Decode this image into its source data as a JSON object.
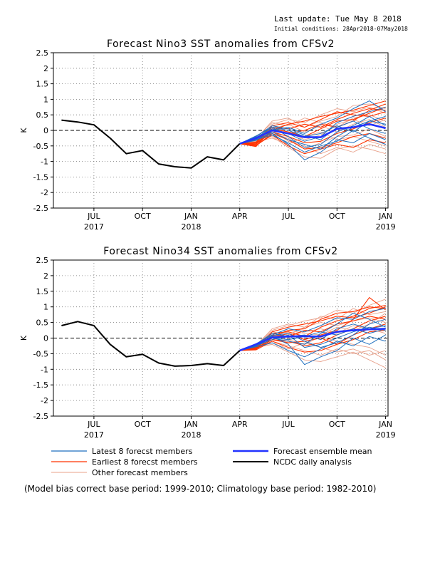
{
  "header": {
    "last_update": "Last update: Tue May 8 2018",
    "initial_conditions": "Initial conditions: 28Apr2018-07May2018"
  },
  "colors": {
    "latest": "#1f6fbf",
    "earliest": "#ff3300",
    "other": "#e8a08a",
    "mean": "#2233ff",
    "analysis": "#000000"
  },
  "legend": {
    "latest": "Latest 8 forecst members",
    "earliest": "Earliest 8 forecst members",
    "other": "Other forecast members",
    "mean": "Forecast ensemble mean",
    "analysis": "NCDC daily analysis"
  },
  "footnote": "(Model bias correct base period: 1999-2010; Climatology base period: 1982-2010)",
  "chart_data": [
    {
      "type": "line",
      "title": "Forecast Nino3 SST anomalies from CFSv2",
      "ylabel": "K",
      "ylim": [
        -2.5,
        2.5
      ],
      "yticks": [
        "2.5",
        "2",
        "1.5",
        "1",
        "0.5",
        "0",
        "-0.5",
        "-1",
        "-1.5",
        "-2",
        "-2.5"
      ],
      "xticks": [
        {
          "month": "JUL",
          "year": "2017"
        },
        {
          "month": "OCT",
          "year": ""
        },
        {
          "month": "JAN",
          "year": "2018"
        },
        {
          "month": "APR",
          "year": ""
        },
        {
          "month": "JUL",
          "year": ""
        },
        {
          "month": "OCT",
          "year": ""
        },
        {
          "month": "JAN",
          "year": "2019"
        }
      ],
      "x_months": [
        "2017-05",
        "2017-06",
        "2017-07",
        "2017-08",
        "2017-09",
        "2017-10",
        "2017-11",
        "2017-12",
        "2018-01",
        "2018-02",
        "2018-03",
        "2018-04",
        "2018-05",
        "2018-06",
        "2018-07",
        "2018-08",
        "2018-09",
        "2018-10",
        "2018-11",
        "2018-12",
        "2019-01"
      ],
      "grid": "dotted",
      "zero_line": "dashed",
      "analysis": [
        0.33,
        0.27,
        0.18,
        -0.25,
        -0.75,
        -0.65,
        -1.08,
        -1.17,
        -1.21,
        -0.85,
        -0.95,
        -0.43
      ],
      "ensemble_mean": [
        -0.43,
        -0.25,
        0.0,
        -0.1,
        -0.22,
        -0.22,
        0.05,
        0.1,
        0.2,
        0.07
      ],
      "forecast_start_index": 11,
      "members": {
        "latest": [
          [
            -0.43,
            -0.18,
            0.1,
            -0.2,
            -0.55,
            -0.45,
            -0.05,
            0.15,
            0.45,
            0.15
          ],
          [
            -0.43,
            -0.28,
            -0.1,
            -0.45,
            -0.95,
            -0.7,
            -0.3,
            -0.4,
            -0.1,
            -0.3
          ],
          [
            -0.43,
            -0.22,
            0.0,
            0.1,
            -0.1,
            0.2,
            0.4,
            0.7,
            0.95,
            0.6
          ],
          [
            -0.43,
            -0.32,
            -0.05,
            -0.3,
            -0.45,
            -0.6,
            -0.2,
            0.1,
            0.3,
            0.45
          ],
          [
            -0.43,
            -0.2,
            0.15,
            0.05,
            -0.15,
            -0.3,
            0.1,
            0.3,
            0.05,
            -0.1
          ],
          [
            -0.43,
            -0.26,
            0.05,
            -0.1,
            -0.35,
            -0.2,
            0.25,
            0.45,
            0.6,
            0.75
          ],
          [
            -0.43,
            -0.3,
            -0.15,
            -0.4,
            -0.7,
            -0.5,
            -0.35,
            0.0,
            -0.25,
            -0.45
          ],
          [
            -0.43,
            -0.24,
            0.1,
            0.0,
            -0.2,
            -0.1,
            0.15,
            -0.05,
            0.3,
            0.2
          ]
        ],
        "earliest": [
          [
            -0.43,
            -0.45,
            0.0,
            0.2,
            0.3,
            0.45,
            0.55,
            0.65,
            0.8,
            0.95
          ],
          [
            -0.43,
            -0.5,
            -0.1,
            -0.3,
            -0.6,
            -0.55,
            -0.4,
            -0.2,
            -0.1,
            -0.25
          ],
          [
            -0.43,
            -0.4,
            0.1,
            0.05,
            0.2,
            0.1,
            0.35,
            0.55,
            0.7,
            0.65
          ],
          [
            -0.43,
            -0.52,
            0.05,
            -0.05,
            -0.2,
            0.05,
            0.3,
            0.35,
            0.55,
            0.75
          ],
          [
            -0.43,
            -0.45,
            -0.05,
            -0.2,
            -0.4,
            -0.35,
            -0.1,
            0.05,
            0.25,
            0.4
          ],
          [
            -0.43,
            -0.38,
            0.15,
            0.25,
            0.1,
            0.35,
            0.6,
            0.5,
            0.45,
            0.6
          ],
          [
            -0.43,
            -0.48,
            -0.15,
            -0.5,
            -0.75,
            -0.6,
            -0.45,
            -0.55,
            -0.3,
            -0.4
          ],
          [
            -0.43,
            -0.42,
            0.0,
            -0.1,
            0.0,
            0.2,
            0.1,
            0.3,
            0.65,
            0.85
          ]
        ],
        "other": [
          [
            -0.43,
            -0.35,
            0.2,
            0.35,
            0.25,
            0.5,
            0.7,
            0.6,
            0.75,
            0.55
          ],
          [
            -0.43,
            -0.3,
            -0.2,
            -0.55,
            -0.85,
            -0.9,
            -0.6,
            -0.5,
            -0.6,
            -0.75
          ],
          [
            -0.43,
            -0.25,
            0.25,
            0.15,
            0.4,
            0.25,
            0.1,
            0.4,
            0.5,
            0.3
          ],
          [
            -0.43,
            -0.35,
            -0.1,
            -0.25,
            -0.6,
            -0.4,
            -0.2,
            -0.15,
            0.05,
            -0.2
          ],
          [
            -0.43,
            -0.28,
            0.1,
            -0.05,
            -0.3,
            -0.15,
            0.2,
            0.35,
            0.15,
            0.35
          ],
          [
            -0.43,
            -0.33,
            0.0,
            -0.35,
            -0.5,
            -0.75,
            -0.55,
            -0.7,
            -0.45,
            -0.6
          ],
          [
            -0.43,
            -0.27,
            0.3,
            0.4,
            0.1,
            0.3,
            0.45,
            0.8,
            0.85,
            0.7
          ],
          [
            -0.43,
            -0.36,
            -0.25,
            -0.45,
            -0.2,
            -0.05,
            -0.3,
            -0.2,
            -0.35,
            -0.5
          ],
          [
            -0.43,
            -0.31,
            0.05,
            0.2,
            -0.05,
            0.15,
            -0.05,
            0.2,
            0.35,
            0.1
          ]
        ]
      }
    },
    {
      "type": "line",
      "title": "Forecast Nino34 SST anomalies from CFSv2",
      "ylabel": "K",
      "ylim": [
        -2.5,
        2.5
      ],
      "yticks": [
        "2.5",
        "2",
        "1.5",
        "1",
        "0.5",
        "0",
        "-0.5",
        "-1",
        "-1.5",
        "-2",
        "-2.5"
      ],
      "xticks": [
        {
          "month": "JUL",
          "year": "2017"
        },
        {
          "month": "OCT",
          "year": ""
        },
        {
          "month": "JAN",
          "year": "2018"
        },
        {
          "month": "APR",
          "year": ""
        },
        {
          "month": "JUL",
          "year": ""
        },
        {
          "month": "OCT",
          "year": ""
        },
        {
          "month": "JAN",
          "year": "2019"
        }
      ],
      "x_months": [
        "2017-05",
        "2017-06",
        "2017-07",
        "2017-08",
        "2017-09",
        "2017-10",
        "2017-11",
        "2017-12",
        "2018-01",
        "2018-02",
        "2018-03",
        "2018-04",
        "2018-05",
        "2018-06",
        "2018-07",
        "2018-08",
        "2018-09",
        "2018-10",
        "2018-11",
        "2018-12",
        "2019-01"
      ],
      "grid": "dotted",
      "zero_line": "dashed",
      "analysis": [
        0.4,
        0.53,
        0.4,
        -0.2,
        -0.6,
        -0.52,
        -0.8,
        -0.9,
        -0.88,
        -0.82,
        -0.88,
        -0.4
      ],
      "ensemble_mean": [
        -0.4,
        -0.2,
        0.02,
        0.05,
        0.06,
        0.05,
        0.2,
        0.25,
        0.28,
        0.3
      ],
      "forecast_start_index": 11,
      "members": {
        "latest": [
          [
            -0.4,
            -0.22,
            0.05,
            -0.2,
            -0.85,
            -0.6,
            -0.4,
            0.0,
            -0.2,
            0.1
          ],
          [
            -0.4,
            -0.25,
            -0.05,
            0.1,
            -0.3,
            -0.2,
            0.0,
            0.2,
            0.35,
            0.25
          ],
          [
            -0.4,
            -0.18,
            0.1,
            0.3,
            0.2,
            0.4,
            0.65,
            0.6,
            0.85,
            0.95
          ],
          [
            -0.4,
            -0.28,
            -0.15,
            -0.4,
            -0.6,
            -0.35,
            -0.1,
            -0.25,
            0.05,
            -0.1
          ],
          [
            -0.4,
            -0.2,
            0.15,
            0.05,
            0.1,
            -0.05,
            0.3,
            0.45,
            0.3,
            0.4
          ],
          [
            -0.4,
            -0.24,
            0.0,
            -0.1,
            -0.2,
            0.15,
            0.45,
            0.8,
            0.6,
            0.35
          ],
          [
            -0.4,
            -0.26,
            0.08,
            0.15,
            -0.1,
            -0.3,
            -0.15,
            0.1,
            0.45,
            0.6
          ],
          [
            -0.4,
            -0.21,
            0.02,
            -0.05,
            0.05,
            0.2,
            0.1,
            0.3,
            0.15,
            0.3
          ]
        ],
        "earliest": [
          [
            -0.4,
            -0.3,
            0.05,
            0.25,
            0.3,
            0.6,
            0.8,
            0.85,
            1.0,
            0.95
          ],
          [
            -0.4,
            -0.35,
            -0.05,
            -0.1,
            -0.25,
            -0.15,
            0.1,
            0.3,
            0.55,
            0.7
          ],
          [
            -0.4,
            -0.28,
            0.15,
            0.2,
            0.05,
            0.35,
            0.55,
            0.7,
            0.95,
            1.05
          ],
          [
            -0.4,
            -0.38,
            -0.1,
            -0.3,
            -0.45,
            -0.4,
            -0.2,
            -0.05,
            0.2,
            0.25
          ],
          [
            -0.4,
            -0.32,
            0.1,
            0.05,
            0.25,
            0.2,
            0.45,
            0.55,
            0.7,
            0.6
          ],
          [
            -0.4,
            -0.33,
            0.0,
            0.15,
            -0.05,
            0.1,
            0.25,
            0.6,
            1.3,
            0.9
          ],
          [
            -0.4,
            -0.36,
            0.2,
            0.35,
            0.45,
            0.55,
            0.7,
            0.65,
            0.8,
            1.0
          ],
          [
            -0.4,
            -0.34,
            -0.05,
            -0.15,
            -0.1,
            0.0,
            -0.2,
            0.1,
            0.3,
            0.45
          ]
        ],
        "other": [
          [
            -0.4,
            -0.25,
            0.25,
            0.4,
            0.55,
            0.65,
            0.9,
            0.8,
            1.05,
            1.25
          ],
          [
            -0.4,
            -0.3,
            -0.2,
            -0.45,
            -0.7,
            -0.75,
            -0.6,
            -0.45,
            -0.7,
            -0.95
          ],
          [
            -0.4,
            -0.22,
            0.2,
            0.1,
            0.35,
            0.5,
            0.4,
            0.55,
            0.65,
            0.5
          ],
          [
            -0.4,
            -0.33,
            -0.1,
            -0.25,
            -0.4,
            -0.55,
            -0.35,
            -0.5,
            -0.4,
            -0.7
          ],
          [
            -0.4,
            -0.27,
            0.05,
            0.25,
            0.15,
            0.1,
            0.35,
            0.25,
            0.45,
            0.8
          ],
          [
            -0.4,
            -0.29,
            0.1,
            -0.05,
            -0.2,
            0.05,
            -0.1,
            -0.2,
            -0.3,
            -0.55
          ],
          [
            -0.4,
            -0.24,
            0.3,
            0.45,
            0.35,
            0.7,
            0.6,
            0.95,
            0.75,
            0.85
          ],
          [
            -0.4,
            -0.31,
            -0.15,
            -0.35,
            -0.15,
            -0.3,
            -0.45,
            -0.35,
            -0.55,
            -0.4
          ],
          [
            -0.4,
            -0.26,
            0.0,
            0.05,
            0.2,
            0.3,
            0.15,
            0.4,
            0.3,
            0.15
          ]
        ]
      }
    }
  ]
}
